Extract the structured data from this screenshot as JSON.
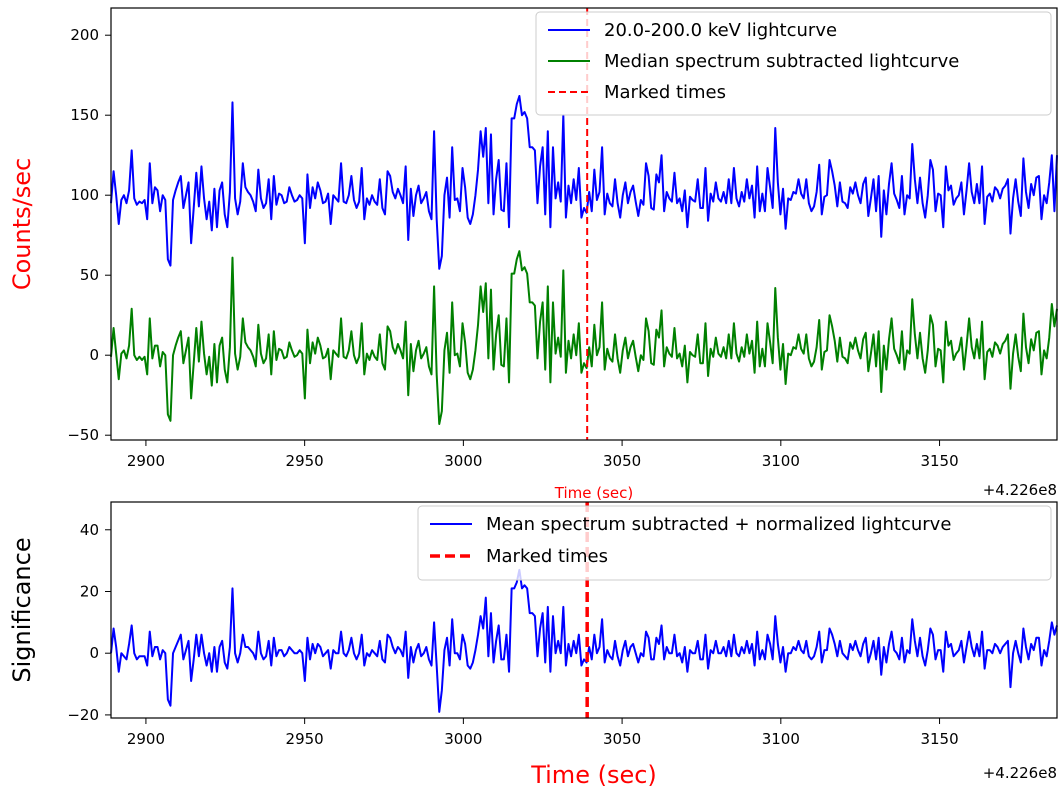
{
  "chart_data": [
    {
      "type": "line",
      "panel": "top",
      "xlabel": "Time (sec)",
      "xlabel_color": "#ff0000",
      "ylabel": "Counts/sec",
      "ylabel_color": "#ff0000",
      "xlim": [
        2889,
        3187
      ],
      "ylim": [
        -53,
        217
      ],
      "xticks": [
        2900,
        2950,
        3000,
        3050,
        3100,
        3150
      ],
      "yticks": [
        -50,
        0,
        50,
        100,
        150,
        200
      ],
      "offset_label": "+4.226e8",
      "legend_position": "top-right",
      "marked_times": [
        3039
      ],
      "series": [
        {
          "name": "20.0-200.0 keV lightcurve",
          "color": "#0000ff",
          "style": "solid",
          "values": [
            95,
            115,
            100,
            82,
            97,
            100,
            95,
            103,
            128,
            98,
            94,
            96,
            95,
            97,
            85,
            120,
            95,
            105,
            103,
            90,
            100,
            97,
            60,
            56,
            97,
            103,
            108,
            112,
            92,
            100,
            108,
            70,
            92,
            114,
            93,
            118,
            98,
            85,
            96,
            78,
            104,
            80,
            103,
            108,
            88,
            80,
            102,
            158,
            98,
            88,
            96,
            120,
            105,
            102,
            100,
            96,
            90,
            116,
            98,
            92,
            95,
            110,
            85,
            112,
            94,
            101,
            100,
            95,
            96,
            105,
            100,
            96,
            97,
            100,
            98,
            70,
            113,
            92,
            105,
            98,
            108,
            103,
            95,
            96,
            101,
            82,
            100,
            98,
            96,
            120,
            96,
            95,
            100,
            112,
            97,
            92,
            96,
            117,
            85,
            98,
            94,
            100,
            96,
            94,
            110,
            92,
            88,
            115,
            112,
            102,
            98,
            104,
            100,
            95,
            118,
            72,
            104,
            87,
            100,
            106,
            95,
            98,
            102,
            90,
            85,
            140,
            85,
            54,
            62,
            100,
            111,
            86,
            130,
            97,
            98,
            90,
            117,
            105,
            86,
            82,
            88,
            100,
            116,
            140,
            124,
            142,
            95,
            138,
            88,
            110,
            122,
            91,
            90,
            120,
            80,
            148,
            148,
            157,
            162,
            150,
            152,
            148,
            130,
            130,
            128,
            95,
            118,
            130,
            88,
            140,
            80,
            130,
            98,
            108,
            96,
            150,
            86,
            106,
            95,
            110,
            97,
            117,
            86,
            92,
            89,
            102,
            90,
            116,
            97,
            102,
            130,
            88,
            101,
            95,
            93,
            110,
            95,
            86,
            100,
            108,
            95,
            102,
            106,
            96,
            87,
            97,
            94,
            120,
            112,
            92,
            91,
            113,
            108,
            125,
            90,
            102,
            98,
            96,
            114,
            95,
            98,
            90,
            103,
            80,
            99,
            97,
            96,
            110,
            92,
            92,
            117,
            84,
            101,
            96,
            108,
            98,
            96,
            102,
            95,
            110,
            95,
            117,
            98,
            93,
            102,
            96,
            110,
            98,
            106,
            86,
            118,
            90,
            101,
            90,
            117,
            105,
            92,
            142,
            108,
            88,
            104,
            79,
            98,
            97,
            102,
            101,
            110,
            101,
            98,
            110,
            95,
            90,
            93,
            102,
            119,
            88,
            99,
            100,
            122,
            115,
            106,
            93,
            108,
            96,
            95,
            92,
            105,
            101,
            108,
            100,
            95,
            107,
            111,
            87,
            98,
            110,
            90,
            112,
            74,
            103,
            88,
            107,
            120,
            101,
            97,
            92,
            112,
            88,
            100,
            98,
            132,
            110,
            95,
            111,
            95,
            86,
            100,
            122,
            116,
            90,
            101,
            100,
            80,
            118,
            103,
            106,
            94,
            98,
            100,
            108,
            88,
            103,
            120,
            102,
            95,
            107,
            95,
            118,
            82,
            99,
            101,
            96,
            105,
            103,
            98,
            104,
            106,
            110,
            76,
            98,
            110,
            96,
            87,
            123,
            102,
            92,
            107,
            100,
            111,
            112,
            85,
            100,
            95,
            108,
            125,
            90,
            125
          ]
        },
        {
          "name": "Median spectrum subtracted lightcurve",
          "color": "#008000",
          "style": "solid",
          "values": [
            -1,
            17,
            1,
            -15,
            1,
            3,
            -2,
            6,
            29,
            0,
            -3,
            -1,
            -3,
            -1,
            -12,
            23,
            -2,
            6,
            6,
            -7,
            2,
            0,
            -37,
            -41,
            0,
            6,
            11,
            15,
            -5,
            3,
            11,
            -27,
            -5,
            17,
            -4,
            21,
            1,
            -12,
            -1,
            -19,
            7,
            -17,
            6,
            11,
            -9,
            -17,
            5,
            61,
            1,
            -9,
            -1,
            23,
            8,
            5,
            3,
            -1,
            -7,
            19,
            1,
            -5,
            -2,
            13,
            -12,
            15,
            -3,
            4,
            3,
            -2,
            -1,
            8,
            3,
            -1,
            0,
            3,
            1,
            -27,
            16,
            -5,
            8,
            1,
            11,
            6,
            -2,
            -1,
            4,
            -15,
            3,
            1,
            -1,
            23,
            -1,
            -2,
            3,
            15,
            0,
            -5,
            -1,
            20,
            -12,
            1,
            -3,
            3,
            -1,
            -3,
            13,
            -5,
            -9,
            18,
            15,
            5,
            1,
            7,
            3,
            -2,
            21,
            -25,
            7,
            -10,
            3,
            9,
            -2,
            1,
            5,
            -7,
            -12,
            43,
            -12,
            -43,
            -35,
            3,
            14,
            -11,
            33,
            0,
            1,
            -7,
            20,
            8,
            -11,
            -15,
            -9,
            3,
            19,
            43,
            27,
            45,
            -2,
            41,
            -9,
            13,
            25,
            -6,
            -7,
            23,
            -17,
            51,
            51,
            60,
            65,
            53,
            55,
            51,
            33,
            33,
            31,
            -2,
            21,
            33,
            -9,
            43,
            -17,
            33,
            1,
            11,
            -1,
            53,
            -11,
            9,
            -2,
            13,
            0,
            20,
            -11,
            -5,
            -8,
            5,
            -7,
            19,
            0,
            5,
            33,
            -9,
            4,
            -2,
            -4,
            13,
            -2,
            -11,
            3,
            11,
            -2,
            5,
            9,
            -1,
            -10,
            0,
            -3,
            23,
            15,
            -5,
            -6,
            16,
            11,
            28,
            -7,
            5,
            1,
            -1,
            17,
            -2,
            1,
            -7,
            6,
            -17,
            2,
            0,
            -1,
            13,
            -5,
            -5,
            20,
            -13,
            4,
            -1,
            11,
            1,
            -1,
            5,
            -2,
            13,
            -2,
            20,
            1,
            -4,
            5,
            -1,
            13,
            1,
            9,
            -11,
            21,
            -7,
            4,
            -7,
            20,
            8,
            -5,
            42,
            11,
            -9,
            7,
            -18,
            1,
            0,
            5,
            4,
            13,
            4,
            1,
            13,
            -2,
            -7,
            -4,
            5,
            22,
            -9,
            2,
            3,
            25,
            18,
            9,
            -4,
            11,
            -1,
            -2,
            -5,
            8,
            4,
            11,
            3,
            -2,
            10,
            14,
            -10,
            1,
            13,
            -7,
            15,
            -23,
            6,
            -9,
            10,
            23,
            4,
            0,
            -5,
            15,
            -9,
            3,
            1,
            35,
            13,
            -2,
            14,
            -2,
            -11,
            3,
            25,
            19,
            -7,
            4,
            3,
            -17,
            21,
            6,
            9,
            -3,
            1,
            3,
            11,
            -9,
            6,
            23,
            5,
            -2,
            10,
            -2,
            21,
            -15,
            2,
            4,
            -1,
            8,
            6,
            1,
            7,
            9,
            13,
            -21,
            1,
            13,
            -1,
            -10,
            26,
            5,
            -5,
            10,
            3,
            14,
            15,
            -12,
            3,
            -2,
            11,
            32,
            18,
            29
          ]
        }
      ]
    },
    {
      "type": "line",
      "panel": "bottom",
      "xlabel": "Time (sec)",
      "xlabel_color": "#ff0000",
      "ylabel": "Significance",
      "ylabel_color": "#000000",
      "xlim": [
        2889,
        3187
      ],
      "ylim": [
        -21,
        49
      ],
      "xticks": [
        2900,
        2950,
        3000,
        3050,
        3100,
        3150
      ],
      "yticks": [
        -20,
        0,
        20,
        40
      ],
      "offset_label": "+4.226e8",
      "legend_position": "top-right",
      "marked_times": [
        3039
      ],
      "series": [
        {
          "name": "Mean spectrum subtracted + normalized lightcurve",
          "color": "#0000ff",
          "style": "solid",
          "values": [
            0,
            8,
            2,
            -6,
            0,
            -1,
            -2,
            3,
            9,
            0,
            -2,
            -1,
            -1,
            -1,
            -4,
            7,
            -1,
            2,
            2,
            -2,
            1,
            0,
            -15,
            -17,
            0,
            2,
            4,
            6,
            -2,
            1,
            4,
            -9,
            -2,
            6,
            -1,
            6,
            0,
            -4,
            0,
            -6,
            2,
            -6,
            2,
            4,
            -3,
            -5,
            2,
            21,
            0,
            -3,
            0,
            6,
            2,
            2,
            1,
            0,
            -2,
            7,
            0,
            -2,
            -1,
            4,
            -4,
            5,
            -1,
            1,
            1,
            -1,
            0,
            2,
            1,
            0,
            0,
            1,
            0,
            -9,
            5,
            -2,
            3,
            0,
            3,
            2,
            -1,
            0,
            1,
            -5,
            1,
            0,
            0,
            7,
            0,
            -1,
            1,
            5,
            0,
            -2,
            0,
            6,
            -4,
            0,
            -1,
            1,
            0,
            -1,
            4,
            -2,
            -3,
            6,
            5,
            2,
            0,
            2,
            1,
            -1,
            7,
            -8,
            2,
            -3,
            1,
            3,
            -1,
            0,
            2,
            -2,
            -4,
            10,
            -4,
            -19,
            -12,
            1,
            5,
            -4,
            11,
            0,
            0,
            -2,
            6,
            3,
            -4,
            -5,
            -3,
            1,
            6,
            12,
            8,
            18,
            -1,
            13,
            -3,
            4,
            9,
            -2,
            -2,
            6,
            -6,
            21,
            21,
            23,
            27,
            21,
            22,
            21,
            13,
            13,
            12,
            -1,
            8,
            13,
            -3,
            15,
            -6,
            12,
            0,
            4,
            0,
            15,
            -4,
            3,
            -1,
            4,
            0,
            6,
            -4,
            -2,
            -3,
            2,
            -2,
            6,
            0,
            2,
            11,
            -3,
            1,
            -1,
            -2,
            4,
            -1,
            -4,
            1,
            4,
            -1,
            2,
            3,
            0,
            -3,
            0,
            -1,
            7,
            5,
            -2,
            -2,
            5,
            3,
            9,
            -2,
            2,
            0,
            0,
            6,
            -1,
            0,
            -3,
            2,
            -6,
            1,
            0,
            0,
            4,
            -2,
            -2,
            6,
            -5,
            1,
            0,
            4,
            0,
            0,
            2,
            -1,
            4,
            -1,
            6,
            0,
            -1,
            2,
            0,
            4,
            0,
            3,
            -4,
            7,
            -2,
            1,
            -2,
            6,
            3,
            -2,
            12,
            3,
            -3,
            2,
            -6,
            0,
            0,
            2,
            1,
            4,
            1,
            0,
            4,
            -1,
            -2,
            -1,
            2,
            7,
            -3,
            1,
            1,
            8,
            6,
            3,
            -1,
            4,
            0,
            -1,
            -2,
            3,
            1,
            4,
            1,
            -1,
            3,
            5,
            -3,
            0,
            4,
            -2,
            5,
            -7,
            2,
            -3,
            3,
            7,
            1,
            0,
            -2,
            5,
            -3,
            1,
            0,
            11,
            4,
            -1,
            5,
            -1,
            -4,
            1,
            8,
            6,
            -2,
            1,
            1,
            -6,
            7,
            2,
            3,
            -1,
            0,
            1,
            4,
            -3,
            2,
            7,
            2,
            -1,
            3,
            -1,
            7,
            -5,
            1,
            1,
            0,
            3,
            2,
            0,
            2,
            3,
            4,
            -11,
            0,
            4,
            0,
            -3,
            8,
            2,
            -2,
            3,
            1,
            5,
            5,
            -4,
            1,
            -1,
            4,
            10,
            6,
            9
          ]
        }
      ]
    }
  ],
  "legend": {
    "top": [
      "20.0-200.0 keV lightcurve",
      "Median spectrum subtracted lightcurve",
      "Marked times"
    ],
    "bottom": [
      "Mean spectrum subtracted + normalized lightcurve",
      "Marked times"
    ]
  },
  "colors": {
    "blue": "#0000ff",
    "green": "#008000",
    "red": "#ff0000",
    "axis": "#000000"
  }
}
